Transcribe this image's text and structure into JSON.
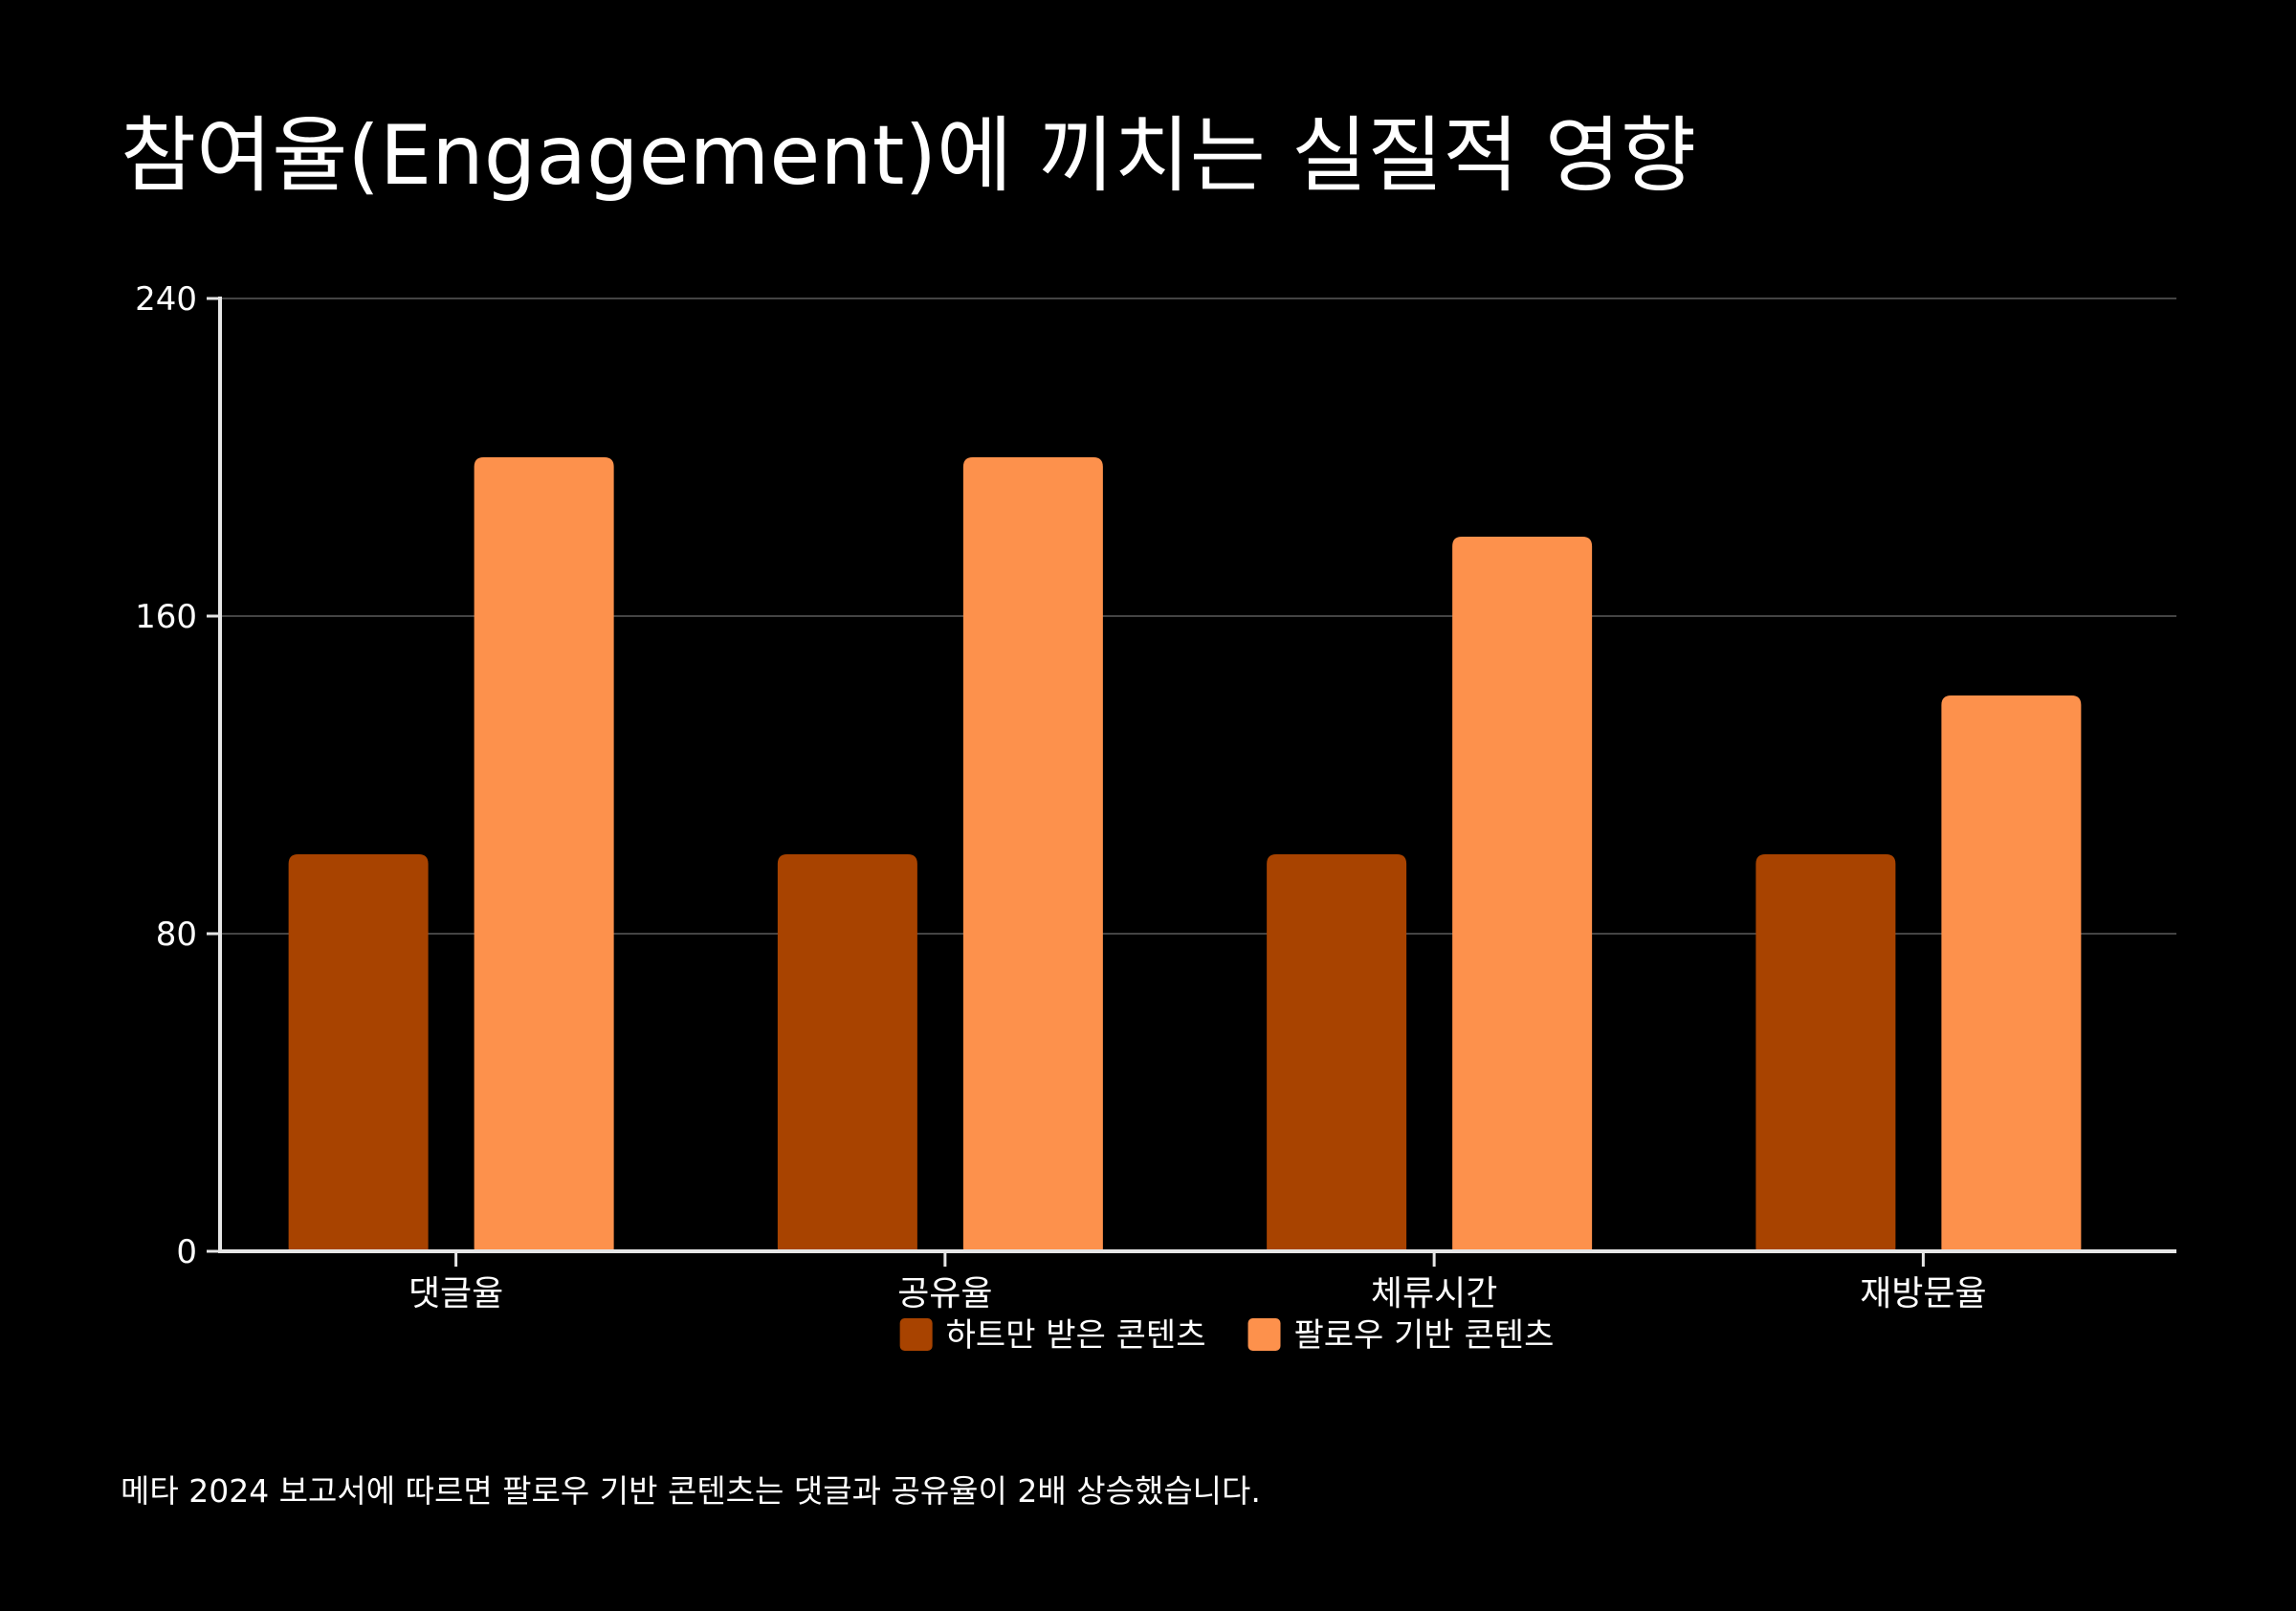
{
  "title": "참여율(Engagement)에 끼치는 실질적 영향",
  "footnote": "메타 2024 보고서에 따르면 팔로우 기반 콘텐츠는 댓글과 공유율이 2배 상승했습니다.",
  "colors": {
    "background": "#000000",
    "series_1": "#a84300",
    "series_2": "#fd914c",
    "axis": "#e6e6e6",
    "grid": "#444444"
  },
  "chart_data": {
    "type": "bar",
    "categories": [
      "댓글율",
      "공유율",
      "체류시간",
      "재방문율"
    ],
    "series": [
      {
        "name": "하트만 받은 콘텐츠",
        "values": [
          100,
          100,
          100,
          100
        ]
      },
      {
        "name": "팔로우 기반 콘텐츠",
        "values": [
          200,
          200,
          180,
          140
        ]
      }
    ],
    "ylim": [
      0,
      240
    ],
    "yticks": [
      0,
      80,
      160,
      240
    ],
    "grid": true,
    "legend_position": "bottom-center"
  }
}
